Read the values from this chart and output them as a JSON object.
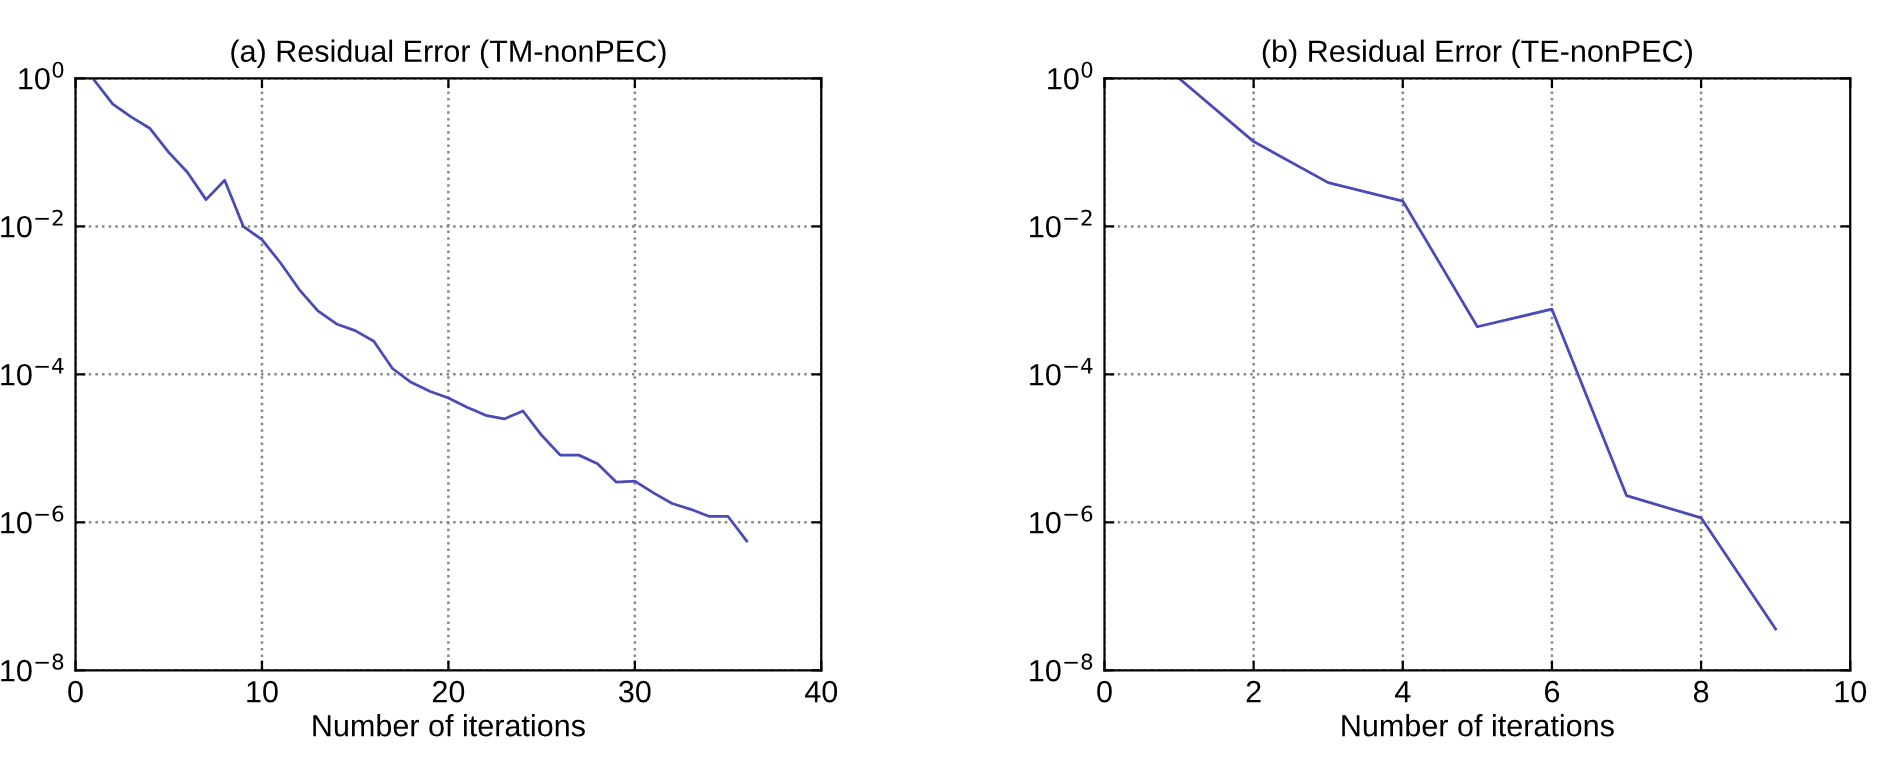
{
  "chart_data": [
    {
      "type": "line",
      "title": "(a) Residual Error (TM-nonPEC)",
      "xlabel": "Number of iterations",
      "x": [
        1,
        2,
        3,
        4,
        5,
        6,
        7,
        8,
        9,
        10,
        11,
        12,
        13,
        14,
        15,
        16,
        17,
        18,
        19,
        20,
        21,
        22,
        23,
        24,
        25,
        26,
        27,
        28,
        29,
        30,
        31,
        32,
        33,
        34,
        35,
        36
      ],
      "series": [
        {
          "color": "#4a4ab8",
          "values": [
            0.95,
            0.45,
            0.3,
            0.21,
            0.1,
            0.054,
            0.023,
            0.042,
            0.01,
            0.0066,
            0.0032,
            0.0014,
            0.00072,
            0.00048,
            0.00039,
            0.00028,
            0.00012,
            7.8e-05,
            5.9e-05,
            4.8e-05,
            3.6e-05,
            2.8e-05,
            2.5e-05,
            3.2e-05,
            1.5e-05,
            8.1e-06,
            8.1e-06,
            6.2e-06,
            3.5e-06,
            3.6e-06,
            2.5e-06,
            1.8e-06,
            1.5e-06,
            1.2e-06,
            1.2e-06,
            5.6e-07
          ]
        }
      ],
      "log": "y",
      "xlim": [
        0,
        40
      ],
      "xticks": [
        0,
        10,
        20,
        30,
        40
      ],
      "ylim": [
        1e-08,
        1
      ],
      "yticks": [
        {
          "value": 1e-08,
          "label": "10$^{−8}$"
        },
        {
          "value": 1e-06,
          "label": "10$^{−6}$"
        },
        {
          "value": 0.0001,
          "label": "10$^{−4}$"
        },
        {
          "value": 0.01,
          "label": "10$^{−2}$"
        },
        {
          "value": 1,
          "label": "10$^{0}$"
        }
      ],
      "grid": true,
      "line_style": "solid",
      "marker": "none"
    },
    {
      "type": "line",
      "title": "(b) Residual Error (TE-nonPEC)",
      "xlabel": "Number of iterations",
      "x": [
        1,
        2,
        3,
        4,
        5,
        6,
        7,
        8,
        9
      ],
      "series": [
        {
          "color": "#4a4ab8",
          "values": [
            1.0,
            0.14,
            0.039,
            0.022,
            0.00044,
            0.00076,
            2.3e-06,
            1.15e-06,
            3.6e-08
          ]
        }
      ],
      "log": "y",
      "xlim": [
        0,
        10
      ],
      "xticks": [
        0,
        2,
        4,
        6,
        8,
        10
      ],
      "ylim": [
        1e-08,
        1
      ],
      "yticks": [
        {
          "value": 1e-08,
          "label": "10$^{−8}$"
        },
        {
          "value": 1e-06,
          "label": "10$^{−6}$"
        },
        {
          "value": 0.0001,
          "label": "10$^{−4}$"
        },
        {
          "value": 0.01,
          "label": "10$^{−2}$"
        },
        {
          "value": 1,
          "label": "10$^{0}$"
        }
      ],
      "grid": true,
      "line_style": "solid",
      "marker": "none"
    }
  ]
}
